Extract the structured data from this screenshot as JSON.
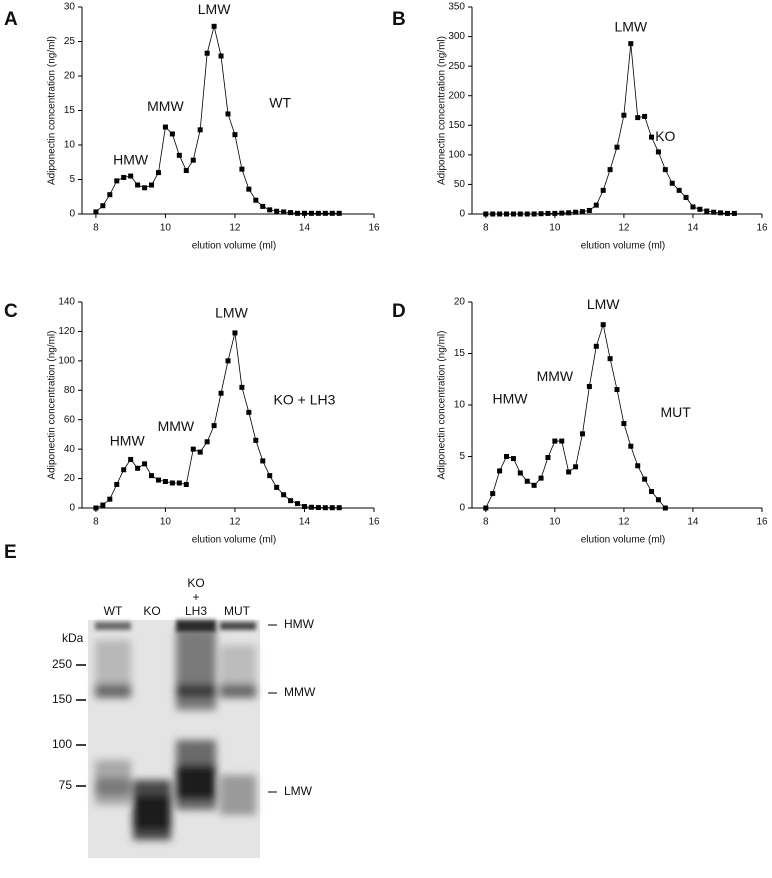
{
  "chart_data": [
    {
      "type": "line",
      "panel": "A",
      "ylabel": "Adiponectin concentration (ng/ml)",
      "xlabel": "elution volume (ml)",
      "color": "#000000",
      "marker": "square",
      "annotations": [
        "HMW",
        "MMW",
        "LMW",
        "WT"
      ],
      "x": [
        8.0,
        8.2,
        8.4,
        8.6,
        8.8,
        9.0,
        9.2,
        9.4,
        9.6,
        9.8,
        10.0,
        10.2,
        10.4,
        10.6,
        10.8,
        11.0,
        11.2,
        11.4,
        11.6,
        11.8,
        12.0,
        12.2,
        12.4,
        12.6,
        12.8,
        13.0,
        13.2,
        13.4,
        13.6,
        13.8,
        14.0,
        14.2,
        14.4,
        14.6,
        14.8,
        15.0
      ],
      "values": [
        0.3,
        1.2,
        2.8,
        4.8,
        5.3,
        5.5,
        4.2,
        3.8,
        4.2,
        6.0,
        12.6,
        11.6,
        8.5,
        6.3,
        7.8,
        12.2,
        23.3,
        27.2,
        22.9,
        14.5,
        11.5,
        6.5,
        3.6,
        2.0,
        1.1,
        0.6,
        0.4,
        0.3,
        0.2,
        0.1,
        0.1,
        0.1,
        0.1,
        0.1,
        0.1,
        0.1
      ],
      "xlim": [
        7.6,
        16
      ],
      "xticks": [
        8,
        10,
        12,
        14,
        16
      ],
      "ylim": [
        0,
        30
      ],
      "yticks": [
        0,
        5,
        10,
        15,
        20,
        25,
        30
      ]
    },
    {
      "type": "line",
      "panel": "B",
      "ylabel": "Adiponectin concentration (ng/ml)",
      "xlabel": "elution volume (ml)",
      "color": "#000000",
      "marker": "square",
      "annotations": [
        "LMW",
        "KO"
      ],
      "x": [
        8.0,
        8.2,
        8.4,
        8.6,
        8.8,
        9.0,
        9.2,
        9.4,
        9.6,
        9.8,
        10.0,
        10.2,
        10.4,
        10.6,
        10.8,
        11.0,
        11.2,
        11.4,
        11.6,
        11.8,
        12.0,
        12.2,
        12.4,
        12.6,
        12.8,
        13.0,
        13.2,
        13.4,
        13.6,
        13.8,
        14.0,
        14.2,
        14.4,
        14.6,
        14.8,
        15.0,
        15.2
      ],
      "values": [
        0,
        0,
        0,
        0,
        0,
        0,
        0,
        0,
        0.5,
        1,
        1,
        1.5,
        2,
        3,
        4,
        6,
        15,
        40,
        75,
        113,
        167,
        288,
        163,
        165,
        130,
        105,
        75,
        52,
        40,
        28,
        12,
        8,
        5,
        3,
        2,
        1,
        1
      ],
      "xlim": [
        7.6,
        16
      ],
      "xticks": [
        8,
        10,
        12,
        14,
        16
      ],
      "ylim": [
        0,
        350
      ],
      "yticks": [
        0,
        50,
        100,
        150,
        200,
        250,
        300,
        350
      ]
    },
    {
      "type": "line",
      "panel": "C",
      "ylabel": "Adiponectin concentration (ng/ml)",
      "xlabel": "elution volume (ml)",
      "color": "#000000",
      "marker": "square",
      "annotations": [
        "HMW",
        "MMW",
        "LMW",
        "KO + LH3"
      ],
      "x": [
        8.0,
        8.2,
        8.4,
        8.6,
        8.8,
        9.0,
        9.2,
        9.4,
        9.6,
        9.8,
        10.0,
        10.2,
        10.4,
        10.6,
        10.8,
        11.0,
        11.2,
        11.4,
        11.6,
        11.8,
        12.0,
        12.2,
        12.4,
        12.6,
        12.8,
        13.0,
        13.2,
        13.4,
        13.6,
        13.8,
        14.0,
        14.2,
        14.4,
        14.6,
        14.8,
        15.0
      ],
      "values": [
        0,
        2,
        6,
        16,
        26,
        33,
        27,
        30,
        22,
        19,
        18,
        17,
        17,
        16,
        40,
        38,
        45,
        56,
        78,
        100,
        119,
        82,
        65,
        46,
        32,
        22,
        14,
        9,
        5,
        3,
        1,
        0.5,
        0.3,
        0.2,
        0.2,
        0.2
      ],
      "xlim": [
        7.6,
        16
      ],
      "xticks": [
        8,
        10,
        12,
        14,
        16
      ],
      "ylim": [
        0,
        140
      ],
      "yticks": [
        0,
        20,
        40,
        60,
        80,
        100,
        120,
        140
      ]
    },
    {
      "type": "line",
      "panel": "D",
      "ylabel": "Adiponectin concentration (ng/ml)",
      "xlabel": "elution volume (ml)",
      "color": "#000000",
      "marker": "square",
      "annotations": [
        "HMW",
        "MMW",
        "LMW",
        "MUT"
      ],
      "x": [
        8.0,
        8.2,
        8.4,
        8.6,
        8.8,
        9.0,
        9.2,
        9.4,
        9.6,
        9.8,
        10.0,
        10.2,
        10.4,
        10.6,
        10.8,
        11.0,
        11.2,
        11.4,
        11.6,
        11.8,
        12.0,
        12.2,
        12.4,
        12.6,
        12.8,
        13.0,
        13.2
      ],
      "values": [
        0,
        1.4,
        3.6,
        5,
        4.8,
        3.4,
        2.6,
        2.2,
        2.9,
        4.9,
        6.5,
        6.5,
        3.5,
        4,
        7.2,
        11.8,
        15.7,
        17.8,
        14.5,
        11.5,
        8.2,
        6,
        4.1,
        2.8,
        1.6,
        0.8,
        0
      ],
      "xlim": [
        7.6,
        16
      ],
      "xticks": [
        8,
        10,
        12,
        14,
        16
      ],
      "ylim": [
        0,
        20
      ],
      "yticks": [
        0,
        5,
        10,
        15,
        20
      ]
    }
  ],
  "gel": {
    "panel": "E",
    "lanes": [
      [
        "WT"
      ],
      [
        "KO"
      ],
      [
        "KO",
        "+",
        "LH3"
      ],
      [
        "MUT"
      ]
    ],
    "marker_unit": "kDa",
    "markers": [
      250,
      150,
      100,
      75
    ],
    "bands": [
      "HMW",
      "MMW",
      "LMW"
    ]
  }
}
